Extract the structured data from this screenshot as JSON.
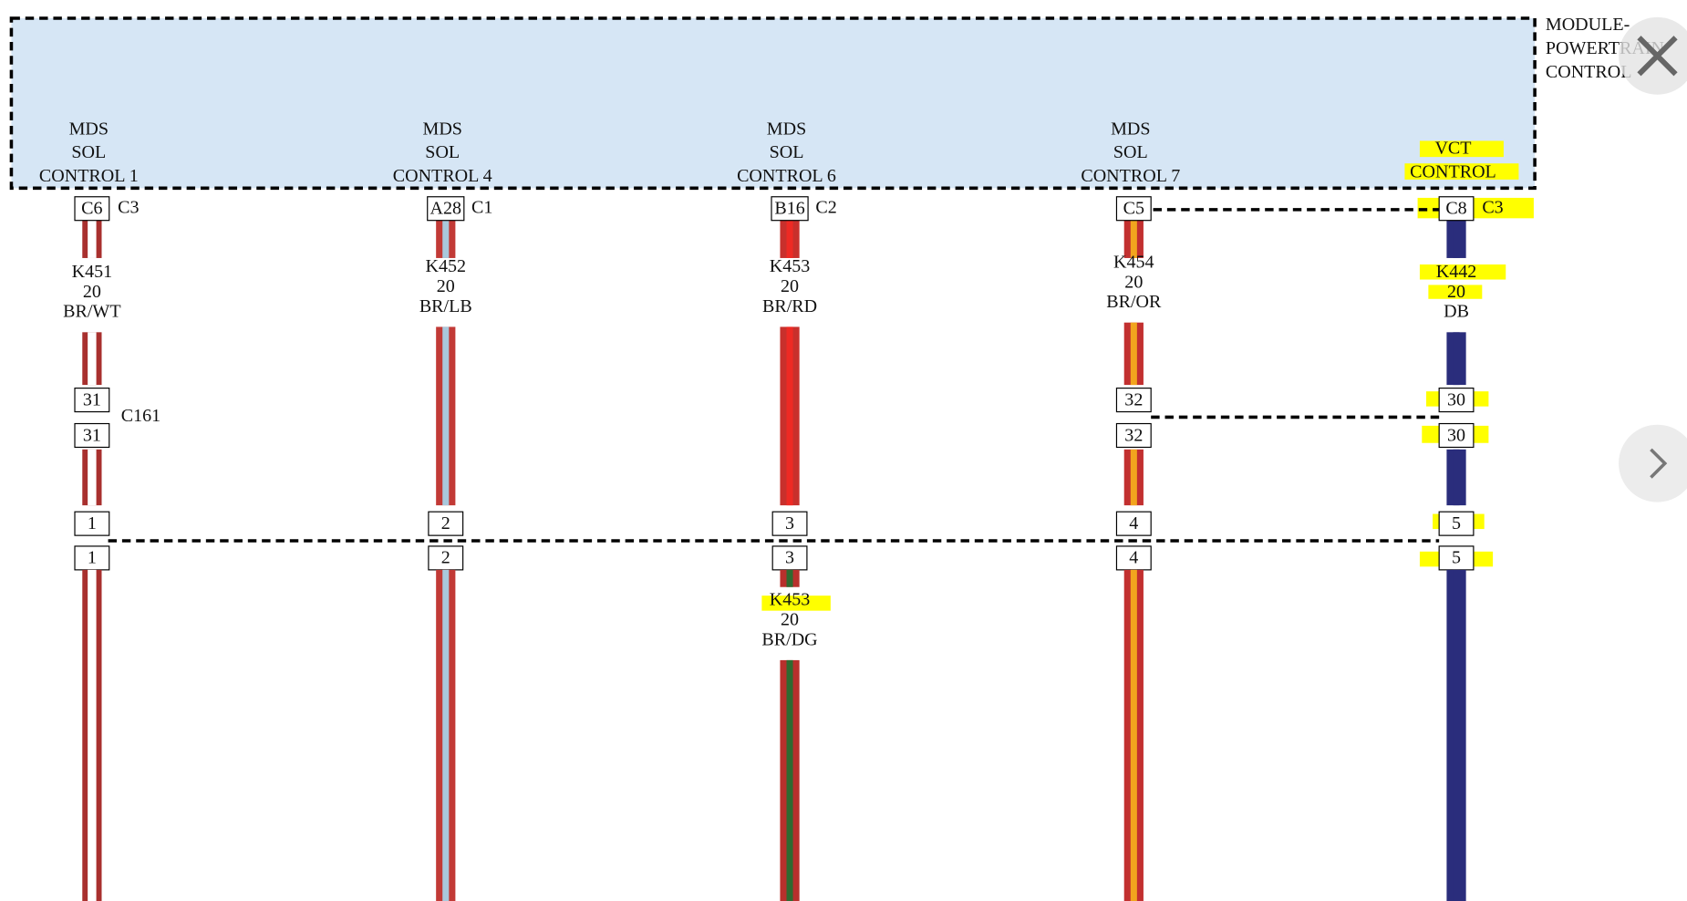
{
  "module": {
    "label": [
      "MODULE-",
      "POWERTRAIN",
      "CONTROL"
    ]
  },
  "circuits": [
    {
      "function": [
        "MDS",
        "SOL",
        "CONTROL 1"
      ],
      "pin": "C6",
      "connector": "C3",
      "wire": [
        "K451",
        "20",
        "BR/WT"
      ],
      "colors": [
        "#a8302e",
        "#ffffff"
      ],
      "inline_pins": [
        "31",
        "31"
      ],
      "splice_pins": [
        "1",
        "1"
      ]
    },
    {
      "function": [
        "MDS",
        "SOL",
        "CONTROL 4"
      ],
      "pin": "A28",
      "connector": "C1",
      "wire": [
        "K452",
        "20",
        "BR/LB"
      ],
      "colors": [
        "#c23a36",
        "#a9c8dc"
      ],
      "splice_pins": [
        "2",
        "2"
      ]
    },
    {
      "function": [
        "MDS",
        "SOL",
        "CONTROL 6"
      ],
      "pin": "B16",
      "connector": "C2",
      "wire": [
        "K453",
        "20",
        "BR/RD"
      ],
      "colors": [
        "#c8302c",
        "#ee2a24"
      ],
      "splice_pins": [
        "3",
        "3"
      ],
      "lower_wire": [
        "K453",
        "20",
        "BR/DG"
      ],
      "lower_colors": [
        "#b8302c",
        "#2f6a30"
      ]
    },
    {
      "function": [
        "MDS",
        "SOL",
        "CONTROL 7"
      ],
      "pin": "C5",
      "wire": [
        "K454",
        "20",
        "BR/OR"
      ],
      "colors": [
        "#c23030",
        "#f2a51e"
      ],
      "inline_pins": [
        "32",
        "32"
      ],
      "splice_pins": [
        "4",
        "4"
      ]
    },
    {
      "function": [
        "VCT",
        "CONTROL"
      ],
      "pin": "C8",
      "connector": "C3",
      "wire": [
        "K442",
        "20",
        "DB"
      ],
      "colors": [
        "#2a2d7c",
        "#2a2d7c"
      ],
      "inline_pins": [
        "30",
        "30"
      ],
      "splice_pins": [
        "5",
        "5"
      ]
    }
  ],
  "inline_connector": "C161"
}
